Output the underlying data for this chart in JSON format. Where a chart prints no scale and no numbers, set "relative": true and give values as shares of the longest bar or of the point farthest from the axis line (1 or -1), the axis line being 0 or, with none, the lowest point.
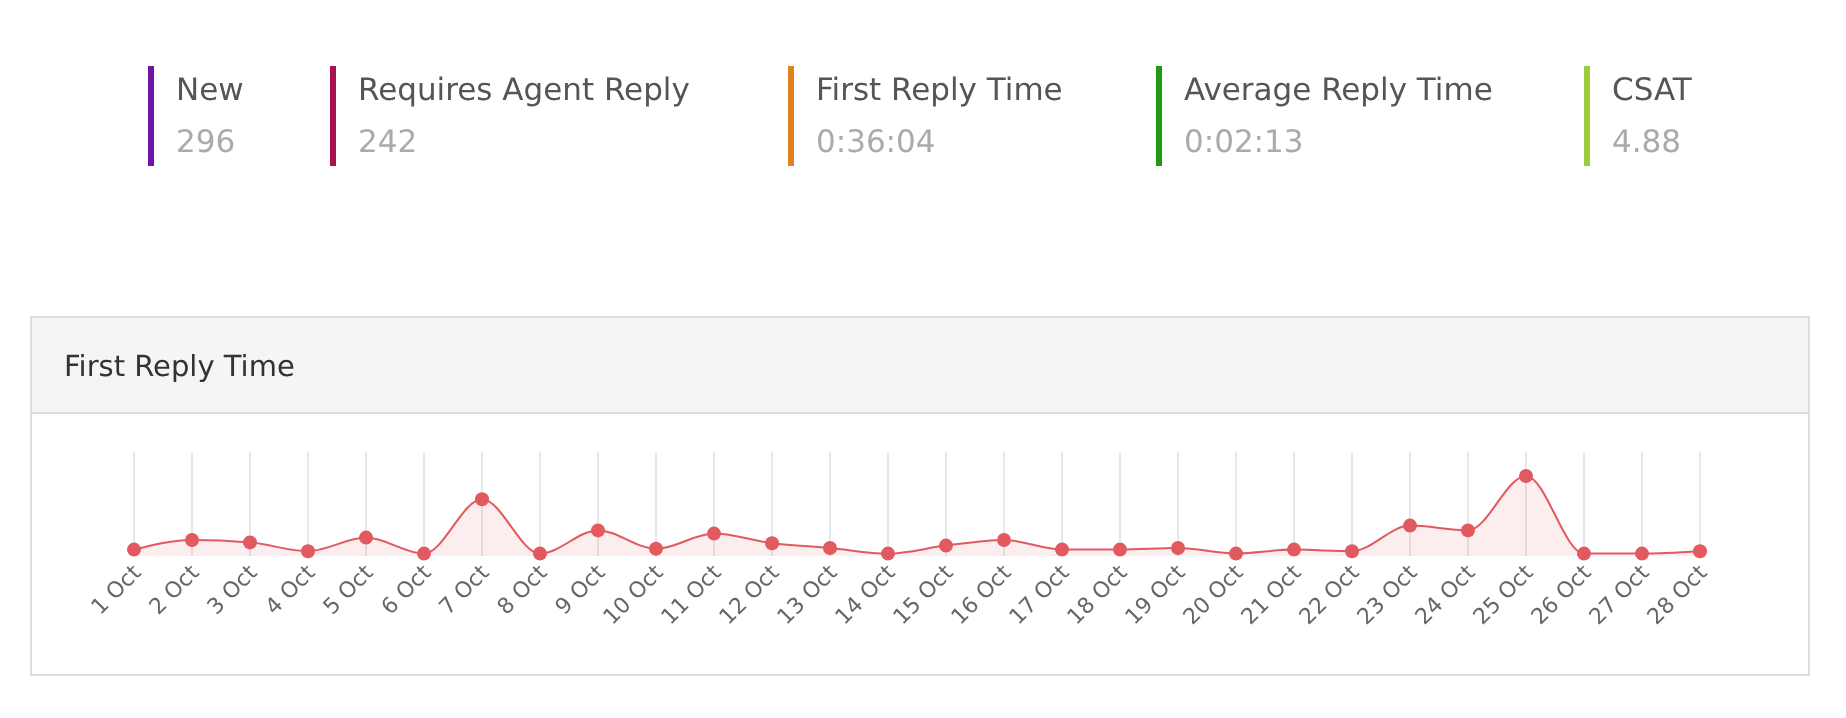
{
  "chart_data": [
    {
      "type": "other",
      "categories": [
        "New",
        "Requires Agent Reply",
        "First Reply Time",
        "Average Reply Time",
        "CSAT"
      ],
      "value_labels": [
        "296",
        "242",
        "0:36:04",
        "0:02:13",
        "4.88"
      ],
      "colors": [
        "#7014a8",
        "#a8124f",
        "#e0821e",
        "#1e9a10",
        "#9ccc3a"
      ]
    },
    {
      "type": "area",
      "title": "First Reply Time",
      "relative": true,
      "grid": "x",
      "marker": "circle",
      "categories": [
        "1 Oct",
        "2 Oct",
        "3 Oct",
        "4 Oct",
        "5 Oct",
        "6 Oct",
        "7 Oct",
        "8 Oct",
        "9 Oct",
        "10 Oct",
        "11 Oct",
        "12 Oct",
        "13 Oct",
        "14 Oct",
        "15 Oct",
        "16 Oct",
        "17 Oct",
        "18 Oct",
        "19 Oct",
        "20 Oct",
        "21 Oct",
        "22 Oct",
        "23 Oct",
        "24 Oct",
        "25 Oct",
        "26 Oct",
        "27 Oct",
        "28 Oct"
      ],
      "series": [
        {
          "color": "#e05a5f",
          "values": [
            0.08,
            0.2,
            0.17,
            0.06,
            0.23,
            0.03,
            0.71,
            0.03,
            0.32,
            0.09,
            0.28,
            0.16,
            0.1,
            0.03,
            0.13,
            0.2,
            0.08,
            0.08,
            0.1,
            0.03,
            0.08,
            0.06,
            0.38,
            0.32,
            1,
            0.03,
            0.03,
            0.06
          ]
        }
      ]
    }
  ]
}
